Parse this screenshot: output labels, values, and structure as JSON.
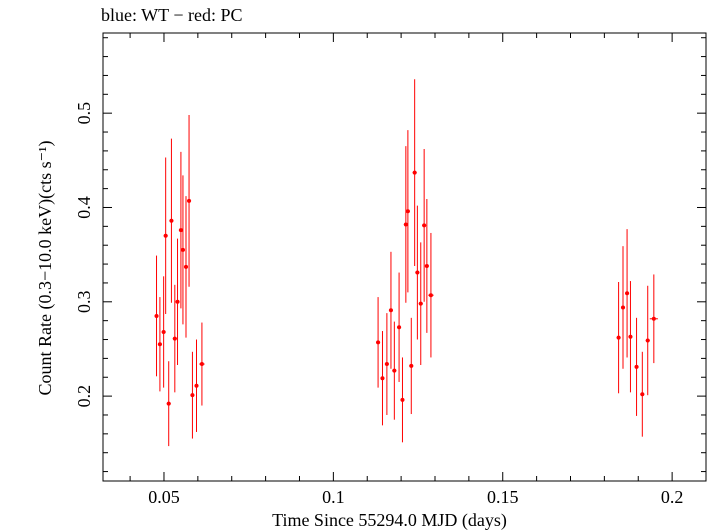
{
  "chart_data": {
    "type": "scatter",
    "title": "blue: WT − red: PC",
    "xlabel": "Time Since 55294.0 MJD (days)",
    "ylabel": "Count Rate (0.3−10.0 keV)(cts s⁻¹)",
    "xlim": [
      0.032,
      0.21
    ],
    "ylim": [
      0.11,
      0.585
    ],
    "xticks": [
      0.05,
      0.1,
      0.15,
      0.2
    ],
    "xtick_labels": [
      "0.05",
      "0.1",
      "0.15",
      "0.2"
    ],
    "yticks": [
      0.2,
      0.3,
      0.4,
      0.5
    ],
    "ytick_labels": [
      "0.2",
      "0.3",
      "0.4",
      "0.5"
    ],
    "grid": false,
    "series": [
      {
        "color": "#ff0000",
        "marker": "point",
        "points": [
          {
            "x": 0.0478,
            "y": 0.285,
            "ylo": 0.221,
            "yhi": 0.349,
            "xerr": 0.0006
          },
          {
            "x": 0.0488,
            "y": 0.255,
            "ylo": 0.205,
            "yhi": 0.305,
            "xerr": 0.0006
          },
          {
            "x": 0.0499,
            "y": 0.268,
            "ylo": 0.209,
            "yhi": 0.327,
            "xerr": 0.0006
          },
          {
            "x": 0.0505,
            "y": 0.37,
            "ylo": 0.287,
            "yhi": 0.453,
            "xerr": 0.0006
          },
          {
            "x": 0.0514,
            "y": 0.192,
            "ylo": 0.147,
            "yhi": 0.237,
            "xerr": 0.0006
          },
          {
            "x": 0.0522,
            "y": 0.386,
            "ylo": 0.299,
            "yhi": 0.473,
            "xerr": 0.0006
          },
          {
            "x": 0.0532,
            "y": 0.261,
            "ylo": 0.204,
            "yhi": 0.318,
            "xerr": 0.0006
          },
          {
            "x": 0.054,
            "y": 0.3,
            "ylo": 0.233,
            "yhi": 0.367,
            "xerr": 0.0006
          },
          {
            "x": 0.055,
            "y": 0.376,
            "ylo": 0.293,
            "yhi": 0.459,
            "xerr": 0.0006
          },
          {
            "x": 0.0556,
            "y": 0.355,
            "ylo": 0.276,
            "yhi": 0.434,
            "xerr": 0.0006
          },
          {
            "x": 0.0565,
            "y": 0.337,
            "ylo": 0.262,
            "yhi": 0.412,
            "xerr": 0.0006
          },
          {
            "x": 0.0574,
            "y": 0.407,
            "ylo": 0.316,
            "yhi": 0.498,
            "xerr": 0.0006
          },
          {
            "x": 0.0584,
            "y": 0.201,
            "ylo": 0.155,
            "yhi": 0.247,
            "xerr": 0.0006
          },
          {
            "x": 0.0596,
            "y": 0.211,
            "ylo": 0.162,
            "yhi": 0.26,
            "xerr": 0.0006
          },
          {
            "x": 0.0612,
            "y": 0.234,
            "ylo": 0.19,
            "yhi": 0.278,
            "xerr": 0.0008
          },
          {
            "x": 0.1132,
            "y": 0.257,
            "ylo": 0.209,
            "yhi": 0.305,
            "xerr": 0.0006
          },
          {
            "x": 0.1145,
            "y": 0.219,
            "ylo": 0.169,
            "yhi": 0.269,
            "xerr": 0.0006
          },
          {
            "x": 0.1158,
            "y": 0.234,
            "ylo": 0.18,
            "yhi": 0.288,
            "xerr": 0.0006
          },
          {
            "x": 0.117,
            "y": 0.291,
            "ylo": 0.229,
            "yhi": 0.353,
            "xerr": 0.0006
          },
          {
            "x": 0.118,
            "y": 0.227,
            "ylo": 0.175,
            "yhi": 0.279,
            "xerr": 0.0006
          },
          {
            "x": 0.1194,
            "y": 0.273,
            "ylo": 0.215,
            "yhi": 0.331,
            "xerr": 0.0006
          },
          {
            "x": 0.1204,
            "y": 0.196,
            "ylo": 0.151,
            "yhi": 0.241,
            "xerr": 0.0006
          },
          {
            "x": 0.1214,
            "y": 0.382,
            "ylo": 0.299,
            "yhi": 0.465,
            "xerr": 0.0006
          },
          {
            "x": 0.122,
            "y": 0.396,
            "ylo": 0.31,
            "yhi": 0.482,
            "xerr": 0.0006
          },
          {
            "x": 0.123,
            "y": 0.232,
            "ylo": 0.181,
            "yhi": 0.283,
            "xerr": 0.0006
          },
          {
            "x": 0.124,
            "y": 0.437,
            "ylo": 0.338,
            "yhi": 0.536,
            "xerr": 0.0006
          },
          {
            "x": 0.1248,
            "y": 0.331,
            "ylo": 0.26,
            "yhi": 0.402,
            "xerr": 0.0006
          },
          {
            "x": 0.1258,
            "y": 0.298,
            "ylo": 0.233,
            "yhi": 0.363,
            "xerr": 0.0006
          },
          {
            "x": 0.1268,
            "y": 0.381,
            "ylo": 0.3,
            "yhi": 0.462,
            "xerr": 0.0006
          },
          {
            "x": 0.1276,
            "y": 0.338,
            "ylo": 0.267,
            "yhi": 0.409,
            "xerr": 0.0006
          },
          {
            "x": 0.1288,
            "y": 0.307,
            "ylo": 0.241,
            "yhi": 0.373,
            "xerr": 0.0008
          },
          {
            "x": 0.1842,
            "y": 0.262,
            "ylo": 0.203,
            "yhi": 0.321,
            "xerr": 0.0006
          },
          {
            "x": 0.1855,
            "y": 0.294,
            "ylo": 0.229,
            "yhi": 0.359,
            "xerr": 0.0006
          },
          {
            "x": 0.1867,
            "y": 0.309,
            "ylo": 0.241,
            "yhi": 0.377,
            "xerr": 0.0006
          },
          {
            "x": 0.1877,
            "y": 0.263,
            "ylo": 0.204,
            "yhi": 0.322,
            "xerr": 0.0006
          },
          {
            "x": 0.1895,
            "y": 0.231,
            "ylo": 0.179,
            "yhi": 0.283,
            "xerr": 0.0006
          },
          {
            "x": 0.1912,
            "y": 0.202,
            "ylo": 0.157,
            "yhi": 0.247,
            "xerr": 0.0006
          },
          {
            "x": 0.1928,
            "y": 0.259,
            "ylo": 0.201,
            "yhi": 0.317,
            "xerr": 0.0006
          },
          {
            "x": 0.1946,
            "y": 0.282,
            "ylo": 0.235,
            "yhi": 0.329,
            "xerr": 0.0012
          }
        ]
      }
    ]
  }
}
